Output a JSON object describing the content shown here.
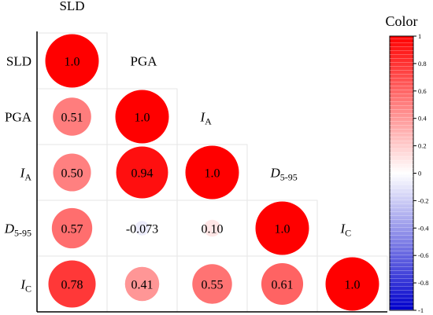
{
  "chart_data": {
    "type": "heatmap",
    "variables": [
      {
        "name": "SLD",
        "sub": ""
      },
      {
        "name": "PGA",
        "sub": ""
      },
      {
        "name": "I",
        "sub": "A",
        "italic": true
      },
      {
        "name": "D",
        "sub": "5-95",
        "italic": true
      },
      {
        "name": "I",
        "sub": "C",
        "italic": true
      }
    ],
    "matrix": [
      [
        1.0,
        null,
        null,
        null,
        null
      ],
      [
        0.51,
        1.0,
        null,
        null,
        null
      ],
      [
        0.5,
        0.94,
        1.0,
        null,
        null
      ],
      [
        0.57,
        -0.073,
        0.1,
        1.0,
        null
      ],
      [
        0.78,
        0.41,
        0.55,
        0.61,
        1.0
      ]
    ],
    "value_labels": [
      [
        "1.0",
        "",
        "",
        "",
        ""
      ],
      [
        "0.51",
        "1.0",
        "",
        "",
        ""
      ],
      [
        "0.50",
        "0.94",
        "1.0",
        "",
        ""
      ],
      [
        "0.57",
        "-0.073",
        "0.10",
        "1.0",
        ""
      ],
      [
        "0.78",
        "0.41",
        "0.55",
        "0.61",
        "1.0"
      ]
    ],
    "colorbar": {
      "title": "Color",
      "range": [
        -1,
        1
      ],
      "ticks": [
        "1",
        "0.8",
        "0.6",
        "0.4",
        "0.2",
        "0",
        "-0.2",
        "-0.4",
        "-0.6",
        "-0.8",
        "-1"
      ],
      "colors": {
        "positive": "#ff0000",
        "mid": "#ffffff",
        "negative": "#0000cc"
      }
    },
    "grid": true
  }
}
